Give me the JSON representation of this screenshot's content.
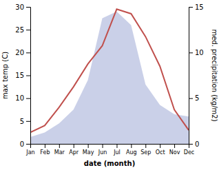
{
  "chart_data": {
    "type": "line",
    "categories": [
      "Jan",
      "Feb",
      "Mar",
      "Apr",
      "May",
      "Jun",
      "Jul",
      "Aug",
      "Sep",
      "Oct",
      "Nov",
      "Dec"
    ],
    "series": [
      {
        "type": "area",
        "color": "#b8c0e0",
        "values": [
          1.5,
          2.5,
          4.5,
          7.5,
          14.0,
          27.5,
          29.0,
          26.0,
          13.0,
          8.5,
          6.5,
          6.0
        ]
      },
      {
        "type": "line",
        "color": "#c0504d",
        "values": [
          2.5,
          4.0,
          8.0,
          12.5,
          17.5,
          21.5,
          29.5,
          28.5,
          23.5,
          17.0,
          7.5,
          3.0
        ]
      }
    ],
    "xlabel": "date (month)",
    "ylabel": "max temp (C)",
    "y2label": "med. precipitation (kg/m2)",
    "ylim": [
      0,
      30
    ],
    "yticks": [
      0,
      5,
      10,
      15,
      20,
      25,
      30
    ],
    "y2lim": [
      0,
      15
    ],
    "y2ticks": [
      0,
      5,
      10,
      15
    ],
    "grid": false
  }
}
